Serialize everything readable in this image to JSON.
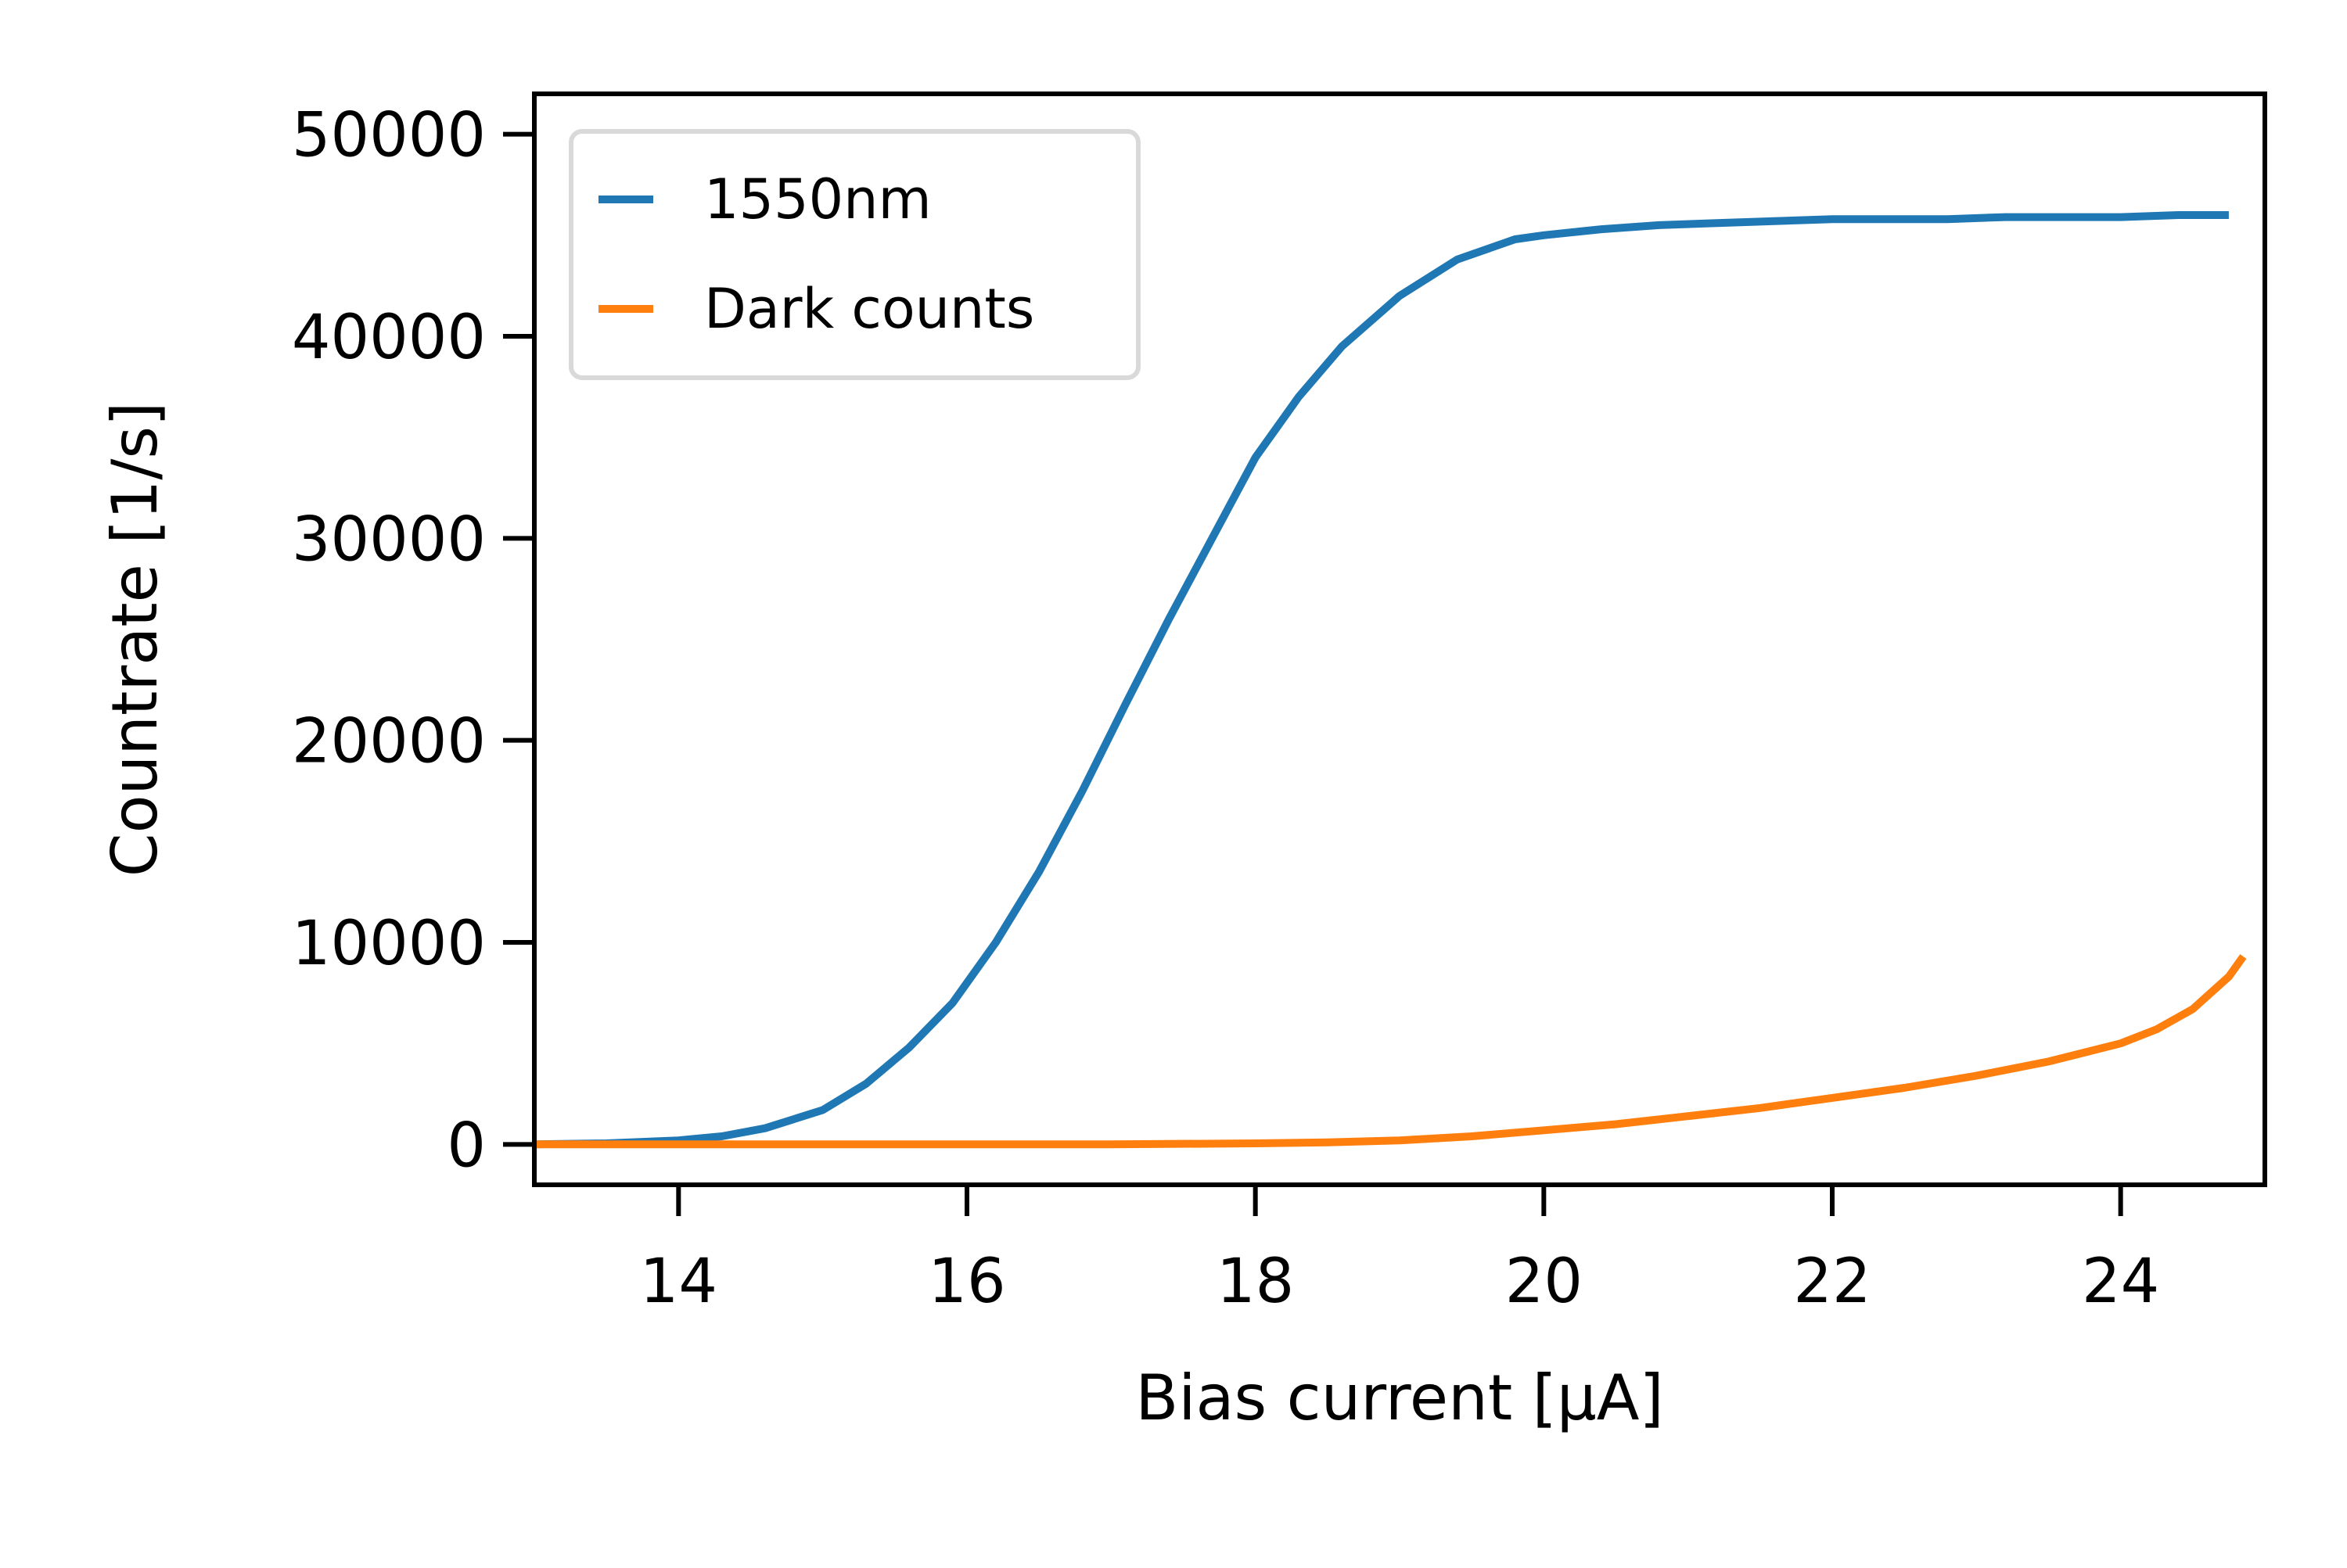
{
  "chart_data": {
    "type": "line",
    "title": "",
    "xlabel": "Bias current [µA]",
    "ylabel": "Countrate [1/s]",
    "xlim": [
      13.0,
      25.0
    ],
    "ylim": [
      -2000,
      52000
    ],
    "xticks": [
      14,
      16,
      18,
      20,
      22,
      24
    ],
    "yticks": [
      0,
      10000,
      20000,
      30000,
      40000,
      50000
    ],
    "grid": false,
    "legend_position": "top-left",
    "series": [
      {
        "name": "1550nm",
        "color": "#1f77b4",
        "x": [
          13.0,
          13.5,
          14.0,
          14.3,
          14.6,
          15.0,
          15.3,
          15.6,
          15.9,
          16.2,
          16.5,
          16.8,
          17.1,
          17.4,
          17.7,
          18.0,
          18.3,
          18.6,
          19.0,
          19.4,
          19.8,
          20.0,
          20.4,
          20.8,
          21.2,
          21.6,
          22.0,
          22.4,
          22.8,
          23.2,
          23.6,
          24.0,
          24.4,
          24.75
        ],
        "y": [
          0,
          50,
          200,
          400,
          800,
          1700,
          3000,
          4800,
          7000,
          10000,
          13500,
          17500,
          21800,
          26000,
          30000,
          34000,
          37000,
          39500,
          42000,
          43800,
          44800,
          45000,
          45300,
          45500,
          45600,
          45700,
          45800,
          45800,
          45800,
          45900,
          45900,
          45900,
          46000,
          46000
        ]
      },
      {
        "name": "Dark counts",
        "color": "#ff7f0e",
        "x": [
          13.0,
          14.0,
          15.0,
          16.0,
          17.0,
          18.0,
          18.5,
          19.0,
          19.5,
          20.0,
          20.5,
          21.0,
          21.5,
          22.0,
          22.5,
          23.0,
          23.5,
          24.0,
          24.25,
          24.5,
          24.75,
          24.85
        ],
        "y": [
          0,
          0,
          0,
          0,
          0,
          50,
          100,
          200,
          400,
          700,
          1000,
          1400,
          1800,
          2300,
          2800,
          3400,
          4100,
          5000,
          5700,
          6700,
          8300,
          9300
        ]
      }
    ]
  }
}
